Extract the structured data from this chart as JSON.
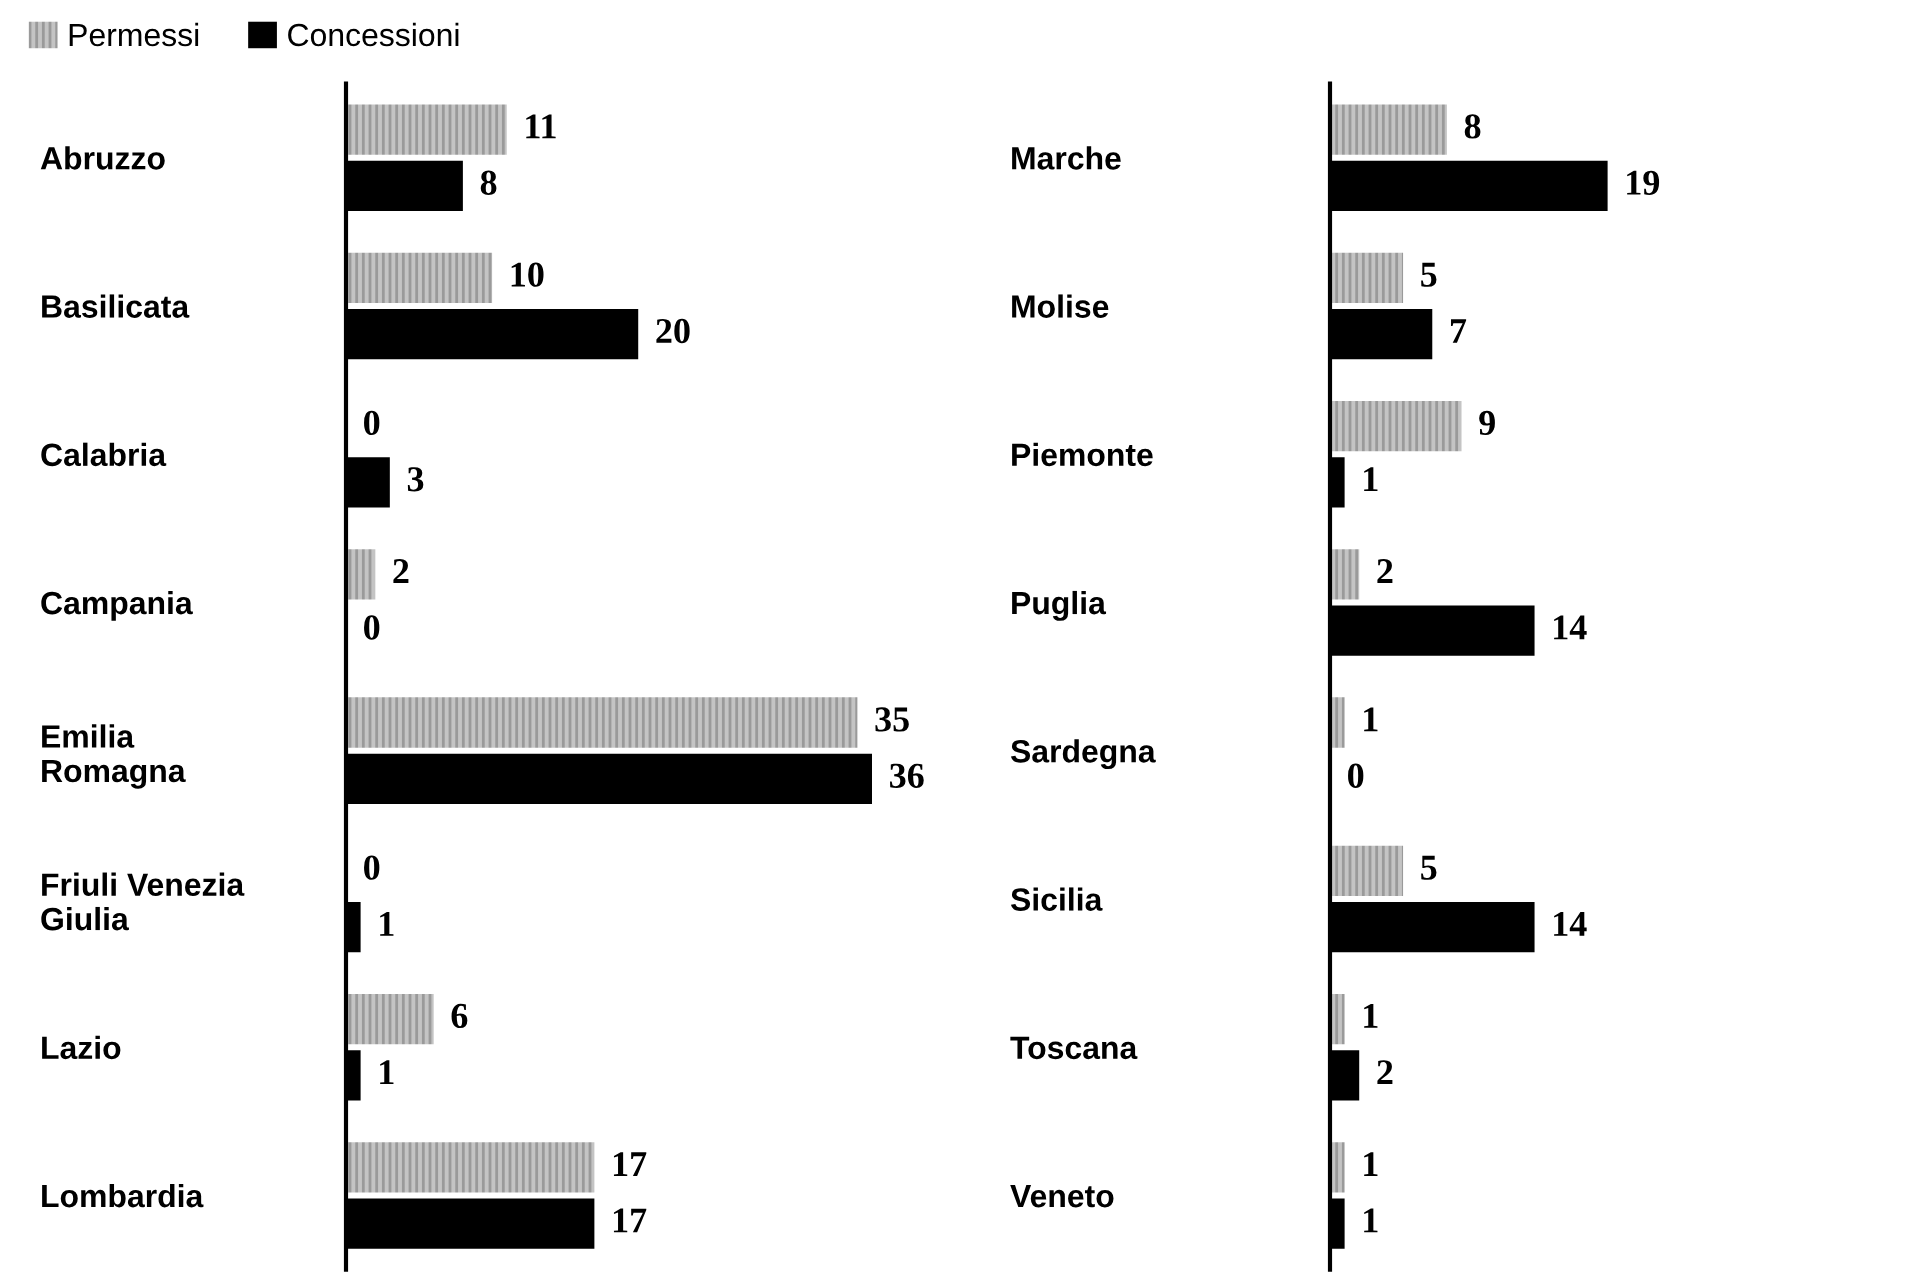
{
  "chart_data": [
    {
      "type": "bar",
      "orientation": "horizontal",
      "legend": "top left",
      "data_labels": true,
      "categories": [
        "Abruzzo",
        "Basilicata",
        "Calabria",
        "Campania",
        "Emilia Romagna",
        "Friuli Venezia Giulia",
        "Lazio",
        "Lombardia"
      ],
      "series": [
        {
          "name": "Permessi",
          "color": "#c4c4c4",
          "values": [
            11,
            10,
            0,
            2,
            35,
            0,
            6,
            17
          ]
        },
        {
          "name": "Concessioni",
          "color": "#000000",
          "values": [
            8,
            20,
            3,
            0,
            36,
            1,
            1,
            17
          ]
        }
      ]
    },
    {
      "type": "bar",
      "orientation": "horizontal",
      "legend": false,
      "data_labels": true,
      "categories": [
        "Marche",
        "Molise",
        "Piemonte",
        "Puglia",
        "Sardegna",
        "Sicilia",
        "Toscana",
        "Veneto"
      ],
      "series": [
        {
          "name": "Permessi",
          "color": "#c4c4c4",
          "values": [
            8,
            5,
            9,
            2,
            1,
            5,
            1,
            1
          ]
        },
        {
          "name": "Concessioni",
          "color": "#000000",
          "values": [
            19,
            7,
            1,
            14,
            0,
            14,
            2,
            1
          ]
        }
      ]
    }
  ]
}
